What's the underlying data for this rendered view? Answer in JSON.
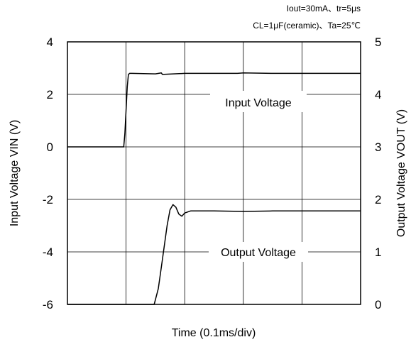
{
  "chart_data": {
    "type": "line",
    "annotations": {
      "line1": "Iout=30mA、tr=5μs",
      "line2": "CL=1μF(ceramic)、Ta=25℃"
    },
    "xlabel": "Time  (0.1ms/div)",
    "ylabel_left": "Input Voltage  VIN  (V)",
    "ylabel_right": "Output Voltage  VOUT  (V)",
    "x_divisions": 5,
    "xlim": [
      0,
      5
    ],
    "ylim_left": [
      -6,
      4
    ],
    "ylim_right": [
      0,
      5
    ],
    "yticks_left": [
      "4",
      "2",
      "0",
      "-2",
      "-4",
      "-6"
    ],
    "yticks_right": [
      "5",
      "4",
      "3",
      "2",
      "1",
      "0"
    ],
    "grid": true,
    "series": [
      {
        "name": "Input Voltage",
        "axis": "left",
        "color": "#000000",
        "x": [
          0,
          0.96,
          0.98,
          1.0,
          1.02,
          1.04,
          1.06,
          1.1,
          1.5,
          1.6,
          1.62,
          2.0,
          2.5,
          2.9,
          3.0,
          3.5,
          4.0,
          4.5,
          5.0
        ],
        "y": [
          0,
          0,
          0.5,
          1.4,
          2.3,
          2.76,
          2.8,
          2.8,
          2.78,
          2.82,
          2.76,
          2.8,
          2.8,
          2.8,
          2.82,
          2.8,
          2.8,
          2.8,
          2.8
        ]
      },
      {
        "name": "Output Voltage",
        "axis": "right",
        "color": "#000000",
        "x": [
          0,
          1.48,
          1.55,
          1.6,
          1.65,
          1.7,
          1.75,
          1.8,
          1.85,
          1.9,
          1.95,
          2.0,
          2.1,
          2.5,
          3.0,
          3.5,
          4.0,
          4.5,
          5.0
        ],
        "y": [
          0,
          0,
          0.3,
          0.7,
          1.1,
          1.5,
          1.8,
          1.9,
          1.85,
          1.72,
          1.68,
          1.74,
          1.78,
          1.78,
          1.77,
          1.78,
          1.78,
          1.78,
          1.78
        ]
      }
    ]
  }
}
